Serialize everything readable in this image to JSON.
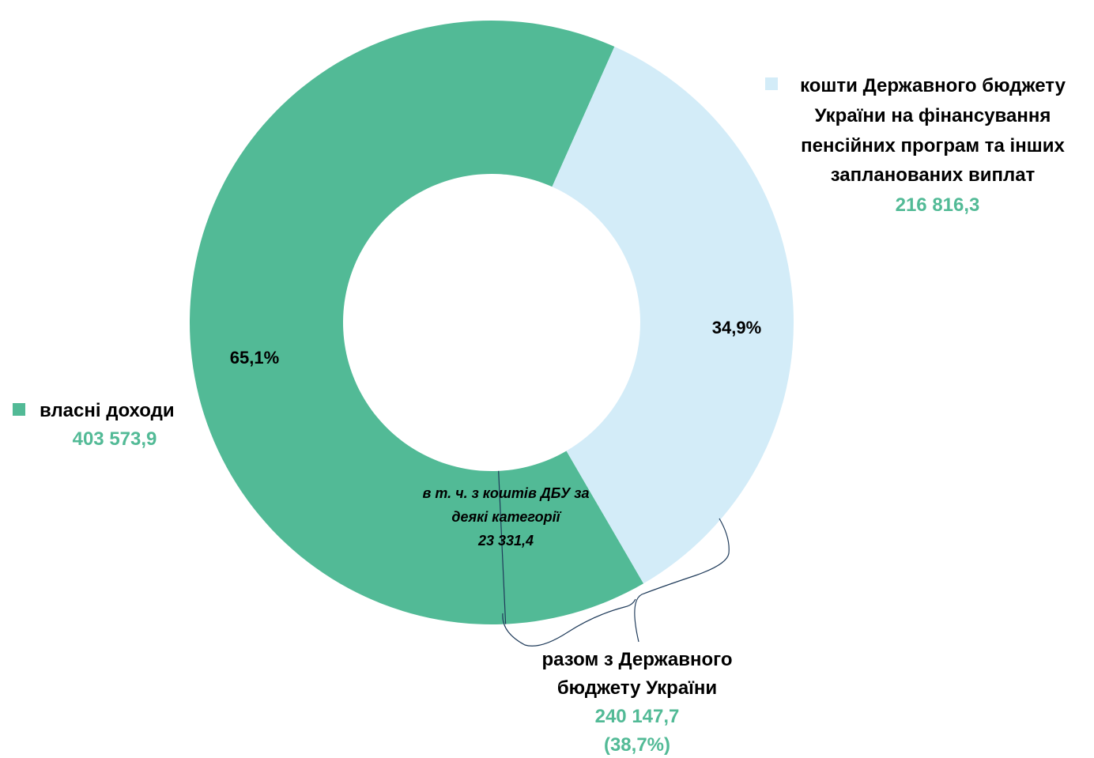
{
  "chart_data": {
    "type": "pie",
    "donut": true,
    "colors": {
      "own_revenue": "#52ba96",
      "state_budget": "#d3ecf8",
      "value_text": "#52ba96",
      "bracket": "#1f3b5a"
    },
    "slices": [
      {
        "key": "own_revenue",
        "label": "власні доходи",
        "value_text": "403 573,9",
        "value": 403573.9,
        "percent_label": "65,1%",
        "percent": 65.1
      },
      {
        "key": "state_budget",
        "label_lines": [
          "кошти Державного бюджету",
          "України на фінансування",
          "пенсійних програм та інших",
          "запланованих виплат"
        ],
        "value_text": "216 816,3",
        "value": 216816.3,
        "percent_label": "34,9%",
        "percent": 34.9
      }
    ],
    "sub_segment": {
      "parent": "own_revenue",
      "label_lines": [
        "в т. ч. з коштів ДБУ за",
        "деякі категорії"
      ],
      "value_text": "23 331,4",
      "value": 23331.4
    },
    "combined_annotation": {
      "label_lines": [
        "разом з Державного",
        "бюджету України"
      ],
      "value_text": "240 147,7",
      "value": 240147.7,
      "percent_text": "(38,7%)",
      "percent": 38.7
    }
  }
}
